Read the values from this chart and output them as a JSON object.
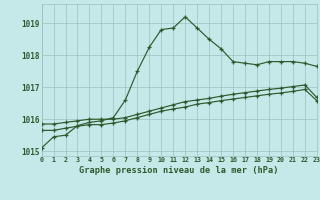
{
  "title": "Graphe pression niveau de la mer (hPa)",
  "background_color": "#c5e8e8",
  "grid_color": "#9fbfbf",
  "line_color": "#2d5a2d",
  "xlim": [
    0,
    23
  ],
  "ylim": [
    1014.85,
    1019.6
  ],
  "yticks": [
    1015,
    1016,
    1017,
    1018,
    1019
  ],
  "xticks": [
    0,
    1,
    2,
    3,
    4,
    5,
    6,
    7,
    8,
    9,
    10,
    11,
    12,
    13,
    14,
    15,
    16,
    17,
    18,
    19,
    20,
    21,
    22,
    23
  ],
  "hours": [
    0,
    1,
    2,
    3,
    4,
    5,
    6,
    7,
    8,
    9,
    10,
    11,
    12,
    13,
    14,
    15,
    16,
    17,
    18,
    19,
    20,
    21,
    22,
    23
  ],
  "series1": [
    1015.1,
    1015.45,
    1015.5,
    1015.8,
    1015.9,
    1015.95,
    1016.05,
    1016.6,
    1017.5,
    1018.25,
    1018.8,
    1018.85,
    1019.2,
    1018.85,
    1018.5,
    1018.2,
    1017.8,
    1017.75,
    1017.7,
    1017.8,
    1017.8,
    1017.8,
    1017.75,
    1017.65
  ],
  "series2": [
    1015.85,
    1015.85,
    1015.9,
    1015.95,
    1016.0,
    1016.0,
    1016.0,
    1016.05,
    1016.15,
    1016.25,
    1016.35,
    1016.45,
    1016.55,
    1016.6,
    1016.65,
    1016.72,
    1016.78,
    1016.83,
    1016.88,
    1016.93,
    1016.97,
    1017.02,
    1017.07,
    1016.68
  ],
  "series3": [
    1015.65,
    1015.65,
    1015.72,
    1015.78,
    1015.83,
    1015.83,
    1015.88,
    1015.95,
    1016.05,
    1016.15,
    1016.25,
    1016.32,
    1016.38,
    1016.47,
    1016.52,
    1016.58,
    1016.63,
    1016.68,
    1016.73,
    1016.78,
    1016.82,
    1016.87,
    1016.93,
    1016.58
  ]
}
